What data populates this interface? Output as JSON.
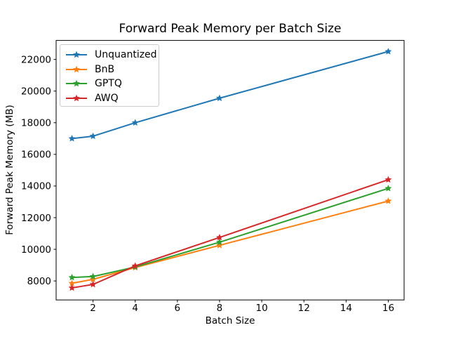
{
  "figure": {
    "background": "#ffffff"
  },
  "chart_data": {
    "type": "line",
    "title": "Forward Peak Memory per Batch Size",
    "xlabel": "Batch Size",
    "ylabel": "Forward Peak Memory (MB)",
    "x": [
      1,
      2,
      4,
      8,
      16
    ],
    "series": [
      {
        "name": "Unquantized",
        "color": "#1f77b4",
        "marker": "star",
        "values": [
          17000,
          17150,
          18000,
          19550,
          22500
        ]
      },
      {
        "name": "BnB",
        "color": "#ff7f0e",
        "marker": "star",
        "values": [
          7850,
          8100,
          8850,
          10250,
          13050
        ]
      },
      {
        "name": "GPTQ",
        "color": "#2ca02c",
        "marker": "star",
        "values": [
          8220,
          8280,
          8880,
          10450,
          13850
        ]
      },
      {
        "name": "AWQ",
        "color": "#d62728",
        "marker": "star",
        "values": [
          7560,
          7780,
          8950,
          10750,
          14400
        ]
      }
    ],
    "xticks": [
      2,
      4,
      6,
      8,
      10,
      12,
      14,
      16
    ],
    "yticks": [
      8000,
      10000,
      12000,
      14000,
      16000,
      18000,
      20000,
      22000
    ],
    "xlim": [
      0.25,
      16.75
    ],
    "ylim": [
      6800,
      23200
    ],
    "grid": false,
    "legend_position": "upper-left"
  }
}
